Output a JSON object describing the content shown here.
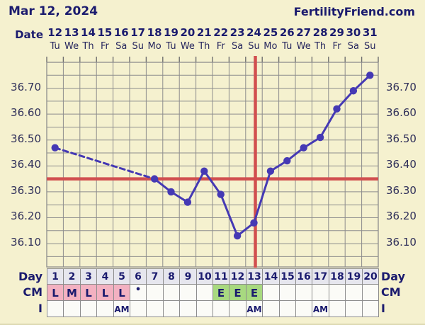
{
  "header": {
    "date": "Mar 12, 2024",
    "brand": "FertilityFriend.com"
  },
  "top_axis": {
    "label": "Date",
    "dates": [
      "12",
      "13",
      "14",
      "15",
      "16",
      "17",
      "18",
      "19",
      "20",
      "21",
      "22",
      "23",
      "24",
      "25",
      "26",
      "27",
      "28",
      "29",
      "30",
      "31"
    ],
    "weekdays": [
      "Tu",
      "We",
      "Th",
      "Fr",
      "Sa",
      "Su",
      "Mo",
      "Tu",
      "We",
      "Th",
      "Fr",
      "Sa",
      "Su",
      "Mo",
      "Tu",
      "We",
      "Th",
      "Fr",
      "Sa",
      "Su"
    ]
  },
  "chart_data": {
    "type": "line",
    "title": "Basal body temperature chart (Celsius)",
    "x": [
      1,
      2,
      3,
      4,
      5,
      6,
      7,
      8,
      9,
      10,
      11,
      12,
      13,
      14,
      15,
      16,
      17,
      18,
      19,
      20
    ],
    "x_dates_march": [
      12,
      13,
      14,
      15,
      16,
      17,
      18,
      19,
      20,
      21,
      22,
      23,
      24,
      25,
      26,
      27,
      28,
      29,
      30,
      31
    ],
    "series": [
      {
        "name": "temperature_c",
        "values": [
          36.47,
          null,
          null,
          null,
          null,
          null,
          36.35,
          36.3,
          36.26,
          36.38,
          36.29,
          36.13,
          36.18,
          36.38,
          36.42,
          36.47,
          36.51,
          36.62,
          36.69,
          36.75
        ]
      }
    ],
    "gap_segments_dashed": true,
    "coverline": 36.35,
    "ovulation_day": 13,
    "yticks": [
      "36.70",
      "36.60",
      "36.50",
      "36.40",
      "36.30",
      "36.20",
      "36.10"
    ],
    "ylim": [
      36.01,
      36.8
    ],
    "grid_step": 0.05,
    "grid": true,
    "legend_position": "none"
  },
  "bottom_table": {
    "rows": [
      {
        "key": "day",
        "label": "Day",
        "cells": [
          {
            "text": "1"
          },
          {
            "text": "2"
          },
          {
            "text": "3"
          },
          {
            "text": "4"
          },
          {
            "text": "5"
          },
          {
            "text": "6"
          },
          {
            "text": "7"
          },
          {
            "text": "8"
          },
          {
            "text": "9"
          },
          {
            "text": "10"
          },
          {
            "text": "11"
          },
          {
            "text": "12"
          },
          {
            "text": "13"
          },
          {
            "text": "14"
          },
          {
            "text": "15"
          },
          {
            "text": "16"
          },
          {
            "text": "17"
          },
          {
            "text": "18"
          },
          {
            "text": "19"
          },
          {
            "text": "20"
          }
        ]
      },
      {
        "key": "cm",
        "label": "CM",
        "cells": [
          {
            "text": "L",
            "bg": "pink"
          },
          {
            "text": "M",
            "bg": "pink"
          },
          {
            "text": "L",
            "bg": "pink"
          },
          {
            "text": "L",
            "bg": "pink"
          },
          {
            "text": "L",
            "bg": "pink"
          },
          {
            "text": "•",
            "dot": true
          },
          {},
          {},
          {},
          {},
          {
            "text": "E",
            "bg": "green"
          },
          {
            "text": "E",
            "bg": "green"
          },
          {
            "text": "E",
            "bg": "green"
          },
          {},
          {},
          {},
          {},
          {},
          {},
          {}
        ]
      },
      {
        "key": "intercourse",
        "label": "I",
        "cells": [
          {},
          {},
          {},
          {},
          {
            "text": "AM"
          },
          {},
          {},
          {},
          {},
          {},
          {},
          {},
          {
            "text": "AM"
          },
          {},
          {},
          {},
          {
            "text": "AM"
          },
          {},
          {},
          {}
        ]
      }
    ]
  },
  "colors": {
    "background": "#f5f1cf",
    "grid": "#8d8d8d",
    "temp_line": "#4539b4",
    "red_lines": "#d14f4f",
    "navy_text": "#1b1b6e",
    "day_row_bg": "#e6e6ee",
    "cell_bg": "#fbfbf7",
    "cm_pink": "#f3b1c1",
    "cm_green": "#a8d980"
  }
}
